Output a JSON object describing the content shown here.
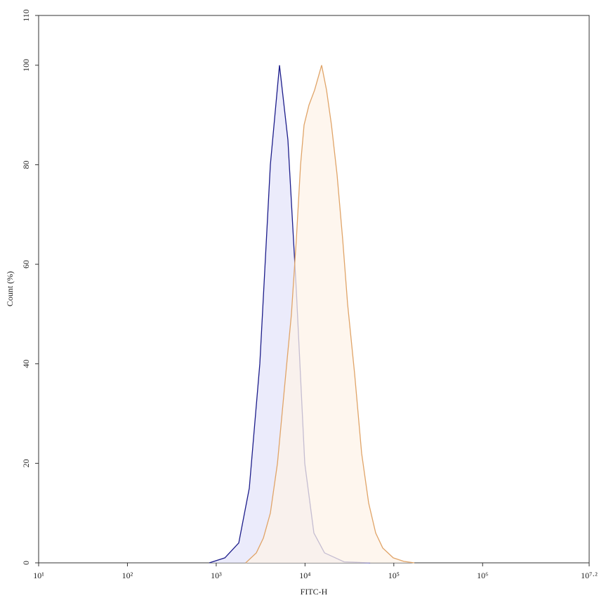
{
  "chart_data": {
    "type": "area",
    "x_label": "FITC-H",
    "y_label": "Count (%)",
    "xscale": "log",
    "xlim": [
      10,
      15848932
    ],
    "ylim": [
      0,
      110
    ],
    "xticks": [
      {
        "value": 10,
        "label": "10¹"
      },
      {
        "value": 100,
        "label": "10²"
      },
      {
        "value": 1000,
        "label": "10³"
      },
      {
        "value": 10000,
        "label": "10⁴"
      },
      {
        "value": 100000,
        "label": "10⁵"
      },
      {
        "value": 1000000,
        "label": "10⁶"
      },
      {
        "value": 15848932,
        "label": "10⁷·²"
      }
    ],
    "yticks": [
      0,
      20,
      40,
      60,
      80,
      100,
      110
    ],
    "series": [
      {
        "color": "#1c1c8a",
        "fill": "#e4e4fa",
        "x": [
          836,
          1250,
          1795,
          2357,
          3097,
          4074,
          5160,
          6418,
          7977,
          9930,
          12600,
          16560,
          27540,
          54100
        ],
        "values": [
          0,
          1,
          4,
          15,
          40,
          80,
          100,
          85,
          55,
          20,
          6,
          2,
          0.2,
          0
        ]
      },
      {
        "color": "#e0a468",
        "fill": "#fdf3e8",
        "x": [
          2150,
          2830,
          3400,
          4074,
          4890,
          5860,
          7030,
          7980,
          8910,
          9760,
          11090,
          12830,
          15380,
          17470,
          19850,
          22960,
          26550,
          30190,
          36230,
          43450,
          52120,
          62520,
          75000,
          98600,
          129500,
          170300
        ],
        "values": [
          0,
          2,
          5,
          10,
          20,
          35,
          50,
          65,
          80,
          88,
          92,
          95,
          100,
          95,
          88,
          78,
          65,
          52,
          38,
          22,
          12,
          6,
          3,
          1,
          0.3,
          0
        ]
      }
    ]
  }
}
